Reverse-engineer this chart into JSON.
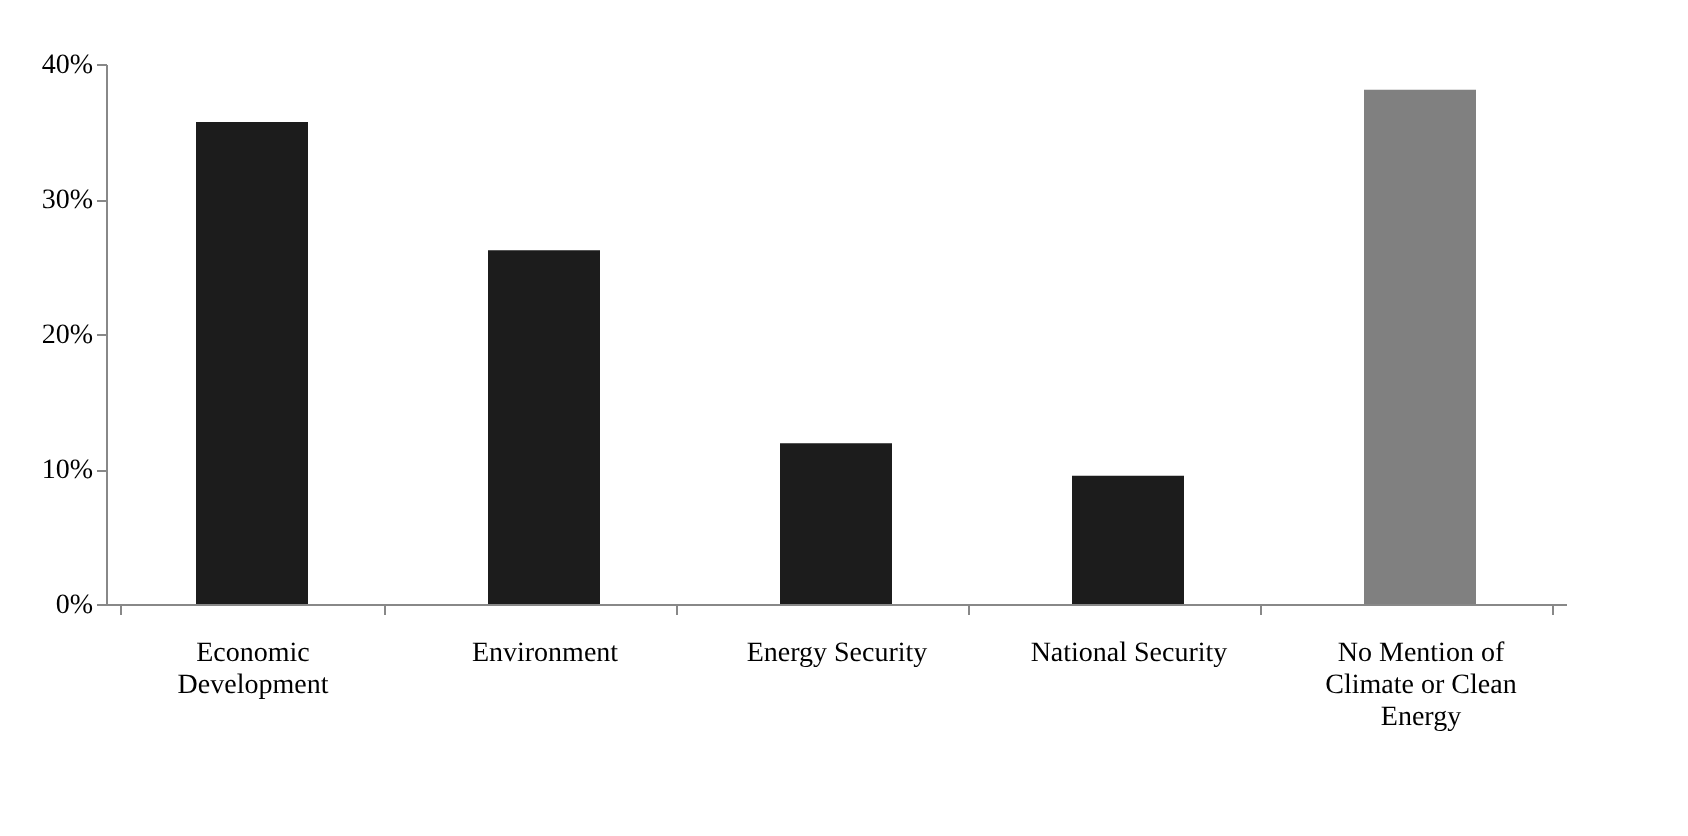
{
  "chart_data": {
    "type": "bar",
    "categories": [
      "Economic Development",
      "Environment",
      "Energy Security",
      "National Security",
      "No Mention of Climate or Clean Energy"
    ],
    "values": [
      35.7,
      26.2,
      11.9,
      9.5,
      38.1
    ],
    "colors": [
      "#1c1c1c",
      "#1c1c1c",
      "#1c1c1c",
      "#1c1c1c",
      "#808080"
    ],
    "ylim": [
      0,
      40
    ],
    "yticks": [
      {
        "value": 0,
        "label": "0%"
      },
      {
        "value": 10,
        "label": "10%"
      },
      {
        "value": 20,
        "label": "20%"
      },
      {
        "value": 30,
        "label": "30%"
      },
      {
        "value": 40,
        "label": "40%"
      }
    ],
    "grid": false
  }
}
